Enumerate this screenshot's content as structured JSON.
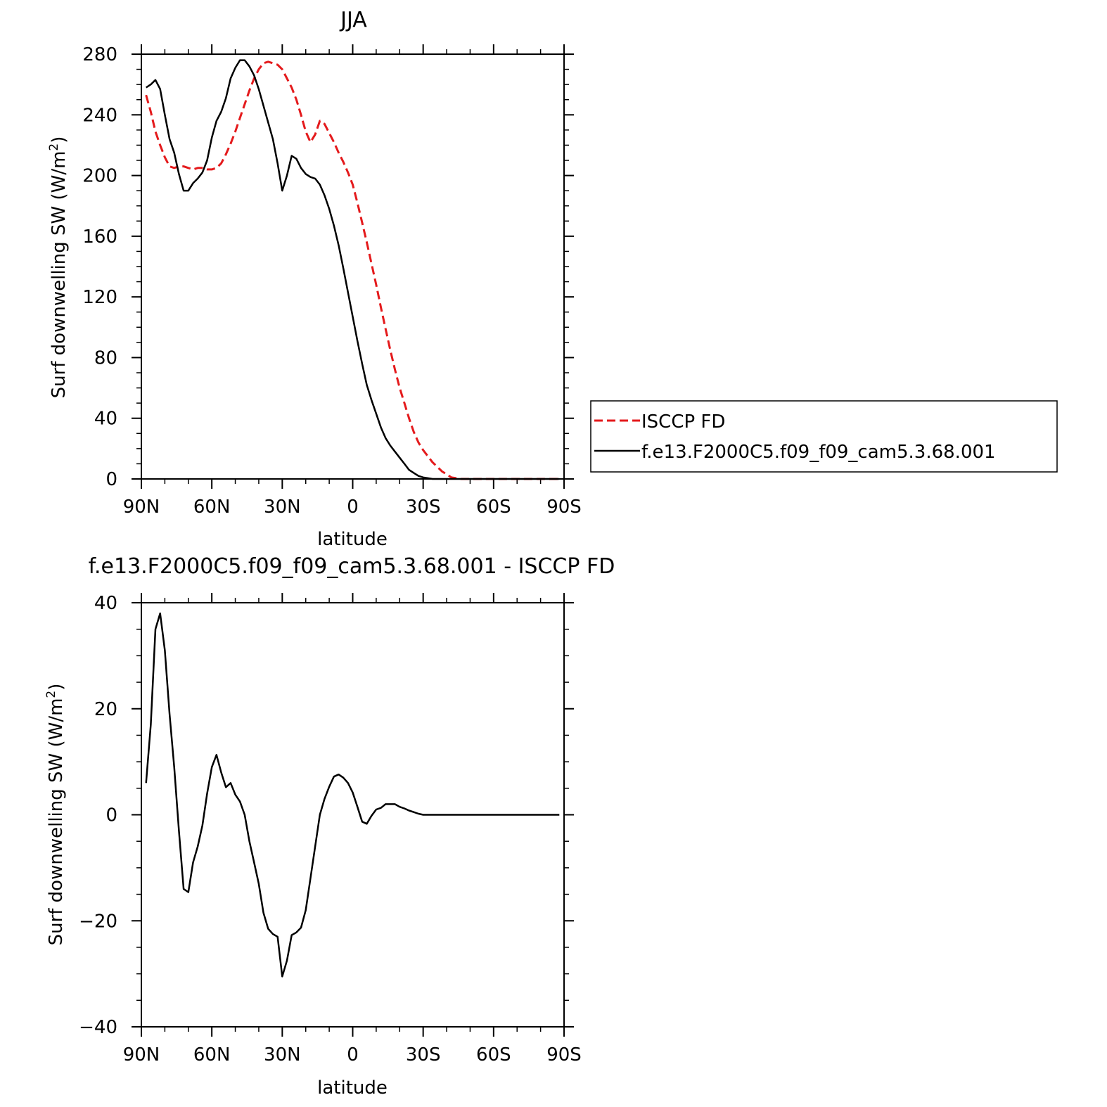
{
  "chart_data": [
    {
      "type": "line",
      "title": "JJA",
      "xlabel": "latitude",
      "ylabel": "Surf downwelling SW (W/m²)",
      "ylabel_base": "Surf downwelling SW (W/m",
      "ylabel_sup": "2",
      "ylabel_end": ")",
      "xlim": [
        -90,
        90
      ],
      "ylim": [
        0,
        280
      ],
      "x_ticks": [
        -90,
        -60,
        -30,
        0,
        30,
        60,
        90
      ],
      "x_tick_labels": [
        "90N",
        "60N",
        "30N",
        "0",
        "30S",
        "60S",
        "90S"
      ],
      "y_ticks": [
        0,
        40,
        80,
        120,
        160,
        200,
        240,
        280
      ],
      "y_tick_labels": [
        "0",
        "40",
        "80",
        "120",
        "160",
        "200",
        "240",
        "280"
      ],
      "legend_position": "right",
      "series": [
        {
          "name": "ISCCP FD",
          "color": "#e41a1c",
          "style": "dashed",
          "x": [
            -88,
            -86,
            -84,
            -82,
            -80,
            -78,
            -76,
            -74,
            -72,
            -70,
            -68,
            -66,
            -64,
            -62,
            -60,
            -58,
            -56,
            -54,
            -52,
            -50,
            -48,
            -46,
            -44,
            -42,
            -40,
            -38,
            -36,
            -34,
            -32,
            -30,
            -28,
            -26,
            -24,
            -22,
            -20,
            -18,
            -16,
            -14,
            -12,
            -10,
            -8,
            -6,
            -4,
            -2,
            0,
            2,
            4,
            6,
            8,
            10,
            12,
            14,
            16,
            18,
            20,
            22,
            24,
            26,
            28,
            30,
            32,
            34,
            36,
            38,
            40,
            42,
            44,
            46,
            48,
            50,
            52,
            54,
            56,
            58,
            60,
            62,
            64,
            66,
            68,
            70,
            72,
            74,
            76,
            78,
            80,
            82,
            84,
            86,
            88
          ],
          "y": [
            253,
            242,
            229,
            220,
            212,
            206,
            205,
            206,
            206,
            205,
            204,
            205,
            205,
            204,
            204,
            205,
            208,
            214,
            221,
            229,
            238,
            247,
            256,
            264,
            270,
            274,
            275,
            274,
            273,
            270,
            264,
            258,
            250,
            240,
            229,
            222,
            227,
            236,
            234,
            228,
            222,
            215,
            209,
            202,
            194,
            182,
            169,
            156,
            142,
            128,
            113,
            99,
            85,
            72,
            60,
            50,
            40,
            31,
            24,
            19,
            15,
            11,
            8,
            5,
            3,
            1,
            0.5,
            0,
            0,
            0,
            0,
            0,
            0,
            0,
            0,
            0,
            0,
            0,
            0,
            0,
            0,
            0,
            0,
            0,
            0,
            0,
            0,
            0,
            0
          ]
        },
        {
          "name": "f.e13.F2000C5.f09_f09_cam5.3.68.001",
          "color": "#000000",
          "style": "solid",
          "x": [
            -88,
            -86,
            -84,
            -82,
            -80,
            -78,
            -76,
            -74,
            -72,
            -70,
            -68,
            -66,
            -64,
            -62,
            -60,
            -58,
            -56,
            -54,
            -52,
            -50,
            -48,
            -46,
            -44,
            -42,
            -40,
            -38,
            -36,
            -34,
            -32,
            -30,
            -28,
            -26,
            -24,
            -22,
            -20,
            -18,
            -16,
            -14,
            -12,
            -10,
            -8,
            -6,
            -4,
            -2,
            0,
            2,
            4,
            6,
            8,
            10,
            12,
            14,
            16,
            18,
            20,
            22,
            24,
            26,
            28,
            30,
            32,
            34,
            36,
            38,
            40,
            42,
            44,
            46,
            48,
            50,
            52,
            54,
            56,
            58,
            60,
            62,
            64,
            66,
            68,
            70,
            72,
            74,
            76,
            78,
            80,
            82,
            84,
            86,
            88
          ],
          "y": [
            258,
            260,
            263,
            257,
            240,
            224,
            215,
            201,
            190,
            190,
            195,
            198,
            202,
            210,
            225,
            236,
            242,
            251,
            264,
            271,
            276,
            276,
            272,
            266,
            257,
            246,
            235,
            224,
            208,
            190,
            200,
            213,
            211,
            205,
            201,
            199,
            198,
            194,
            187,
            178,
            167,
            154,
            139,
            123,
            107,
            91,
            76,
            62,
            52,
            43,
            34,
            27,
            22,
            18,
            14,
            10,
            6,
            4,
            2,
            1,
            0.5,
            0,
            0,
            0,
            0,
            0,
            0,
            0,
            0,
            0,
            0,
            0,
            0,
            0,
            0,
            0,
            0,
            0,
            0,
            0,
            0,
            0,
            0,
            0,
            0,
            0,
            0,
            0,
            0
          ]
        }
      ]
    },
    {
      "type": "line",
      "title": "f.e13.F2000C5.f09_f09_cam5.3.68.001 - ISCCP FD",
      "xlabel": "latitude",
      "ylabel": "Surf downwelling SW (W/m²)",
      "ylabel_base": "Surf downwelling SW (W/m",
      "ylabel_sup": "2",
      "ylabel_end": ")",
      "xlim": [
        -90,
        90
      ],
      "ylim": [
        -40,
        40
      ],
      "x_ticks": [
        -90,
        -60,
        -30,
        0,
        30,
        60,
        90
      ],
      "x_tick_labels": [
        "90N",
        "60N",
        "30N",
        "0",
        "30S",
        "60S",
        "90S"
      ],
      "y_ticks": [
        -40,
        -20,
        0,
        20,
        40
      ],
      "y_tick_labels": [
        "−40",
        "−20",
        "0",
        "20",
        "40"
      ],
      "series": [
        {
          "color": "#000000",
          "style": "solid",
          "x": [
            -88,
            -86,
            -84,
            -82,
            -80,
            -78,
            -76,
            -74,
            -72,
            -70,
            -68,
            -66,
            -64,
            -62,
            -60,
            -58,
            -56,
            -54,
            -52,
            -50,
            -48,
            -46,
            -44,
            -42,
            -40,
            -38,
            -36,
            -34,
            -32,
            -30,
            -28,
            -26,
            -24,
            -22,
            -20,
            -18,
            -16,
            -14,
            -12,
            -10,
            -8,
            -6,
            -4,
            -2,
            0,
            2,
            4,
            6,
            8,
            10,
            12,
            14,
            16,
            18,
            20,
            22,
            24,
            26,
            28,
            30,
            32,
            34,
            36,
            38,
            40,
            42,
            44,
            46,
            48,
            50,
            52,
            54,
            56,
            58,
            60,
            62,
            64,
            66,
            68,
            70,
            72,
            74,
            76,
            78,
            80,
            82,
            84,
            86,
            88
          ],
          "y": [
            6,
            17,
            35,
            38,
            31,
            19,
            9,
            -3,
            -14,
            -14.6,
            -9,
            -6,
            -2,
            4,
            9,
            11.3,
            8,
            5.2,
            6,
            3.8,
            2.5,
            0,
            -5,
            -9,
            -13,
            -18.5,
            -21.5,
            -22.5,
            -23,
            -30.5,
            -27.5,
            -22.7,
            -22.2,
            -21.3,
            -18,
            -12,
            -6,
            0,
            3,
            5.3,
            7.2,
            7.6,
            7,
            6,
            4.2,
            1.5,
            -1.3,
            -1.7,
            -0.2,
            1,
            1.3,
            2,
            2,
            2,
            1.5,
            1.2,
            0.8,
            0.5,
            0.2,
            0,
            0,
            0,
            0,
            0,
            0,
            0,
            0,
            0,
            0,
            0,
            0,
            0,
            0,
            0,
            0,
            0,
            0,
            0,
            0,
            0,
            0,
            0,
            0,
            0,
            0,
            0,
            0,
            0,
            0
          ]
        }
      ]
    }
  ]
}
